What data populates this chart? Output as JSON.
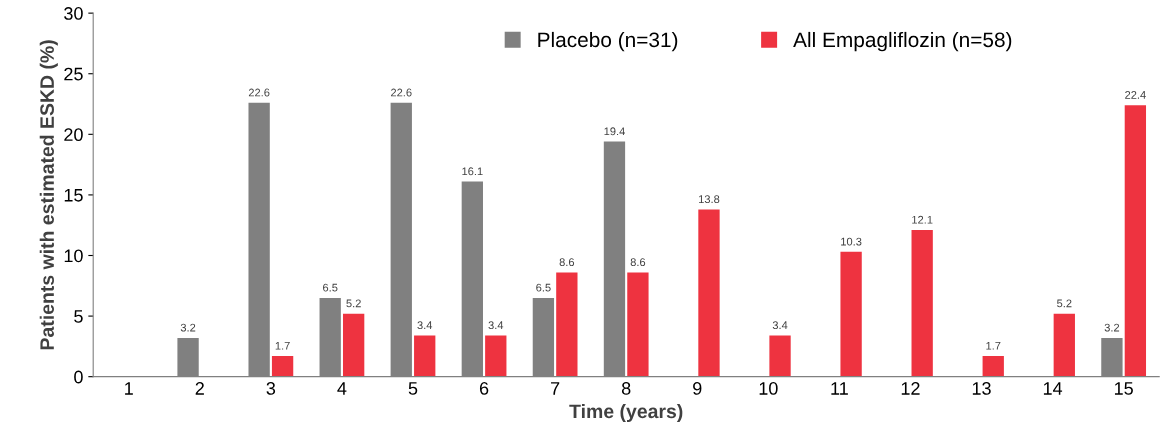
{
  "chart_data": {
    "type": "bar",
    "xlabel": "Time (years)",
    "ylabel": "Patients with estimated ESKD (%)",
    "categories": [
      "1",
      "2",
      "3",
      "4",
      "5",
      "6",
      "7",
      "8",
      "9",
      "10",
      "11",
      "12",
      "13",
      "14",
      "15"
    ],
    "series": [
      {
        "name": "Placebo (n=31)",
        "color": "#808080",
        "values": [
          null,
          3.2,
          22.6,
          6.5,
          22.6,
          16.1,
          6.5,
          19.4,
          null,
          null,
          null,
          null,
          null,
          null,
          3.2
        ]
      },
      {
        "name": "All Empagliflozin (n=58)",
        "color": "#ee3340",
        "values": [
          null,
          null,
          1.7,
          5.2,
          3.4,
          3.4,
          8.6,
          8.6,
          13.8,
          3.4,
          10.3,
          12.1,
          1.7,
          5.2,
          22.4
        ]
      }
    ],
    "ylim": [
      0,
      30
    ],
    "yticks": [
      0,
      5,
      10,
      15,
      20,
      25,
      30
    ],
    "data_labels": true,
    "grid": false,
    "legend": "top right"
  }
}
